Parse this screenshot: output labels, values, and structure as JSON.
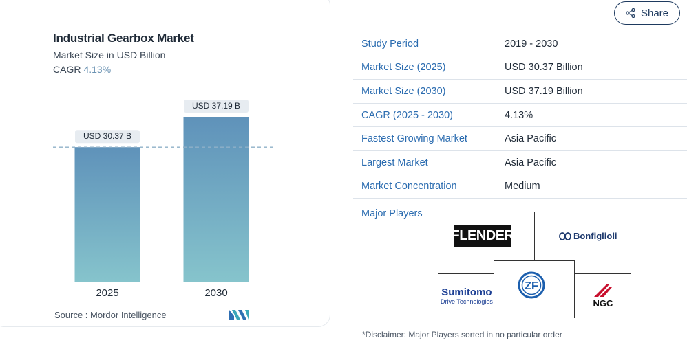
{
  "chart": {
    "title": "Industrial Gearbox Market",
    "subtitle": "Market Size in USD Billion",
    "cagr_label": "CAGR",
    "cagr_value": "4.13%",
    "source": "Source :  Mordor Intelligence"
  },
  "chart_data": {
    "type": "bar",
    "categories": [
      "2025",
      "2030"
    ],
    "values": [
      30.37,
      37.19
    ],
    "data_labels": [
      "USD 30.37 B",
      "USD 37.19 B"
    ],
    "title": "Industrial Gearbox Market",
    "subtitle": "Market Size in USD Billion",
    "ylim": [
      0,
      37.19
    ],
    "grid": false,
    "reference_line": 30.37
  },
  "share": {
    "label": "Share"
  },
  "stats": [
    {
      "key": "Study Period",
      "value": "2019 - 2030"
    },
    {
      "key": "Market Size (2025)",
      "value": "USD 30.37 Billion"
    },
    {
      "key": "Market Size (2030)",
      "value": "USD 37.19 Billion"
    },
    {
      "key": "CAGR (2025 - 2030)",
      "value": "4.13%"
    },
    {
      "key": "Fastest Growing Market",
      "value": "Asia Pacific"
    },
    {
      "key": "Largest Market",
      "value": "Asia Pacific"
    },
    {
      "key": "Market Concentration",
      "value": "Medium"
    }
  ],
  "players": {
    "label": "Major Players",
    "flender": "FLENDER",
    "bonfiglioli": "Bonfiglioli",
    "sumitomo": "Sumitomo",
    "sumitomo_sub": "Drive Technologies",
    "zf": "ZF",
    "ngc": "NGC"
  },
  "disclaimer": "*Disclaimer: Major Players sorted in no particular order",
  "colors": {
    "bar_top": "#5f92ba",
    "bar_bottom": "#86c4cc",
    "label_bg": "#e7ecf1",
    "link": "#2b6cb0"
  }
}
